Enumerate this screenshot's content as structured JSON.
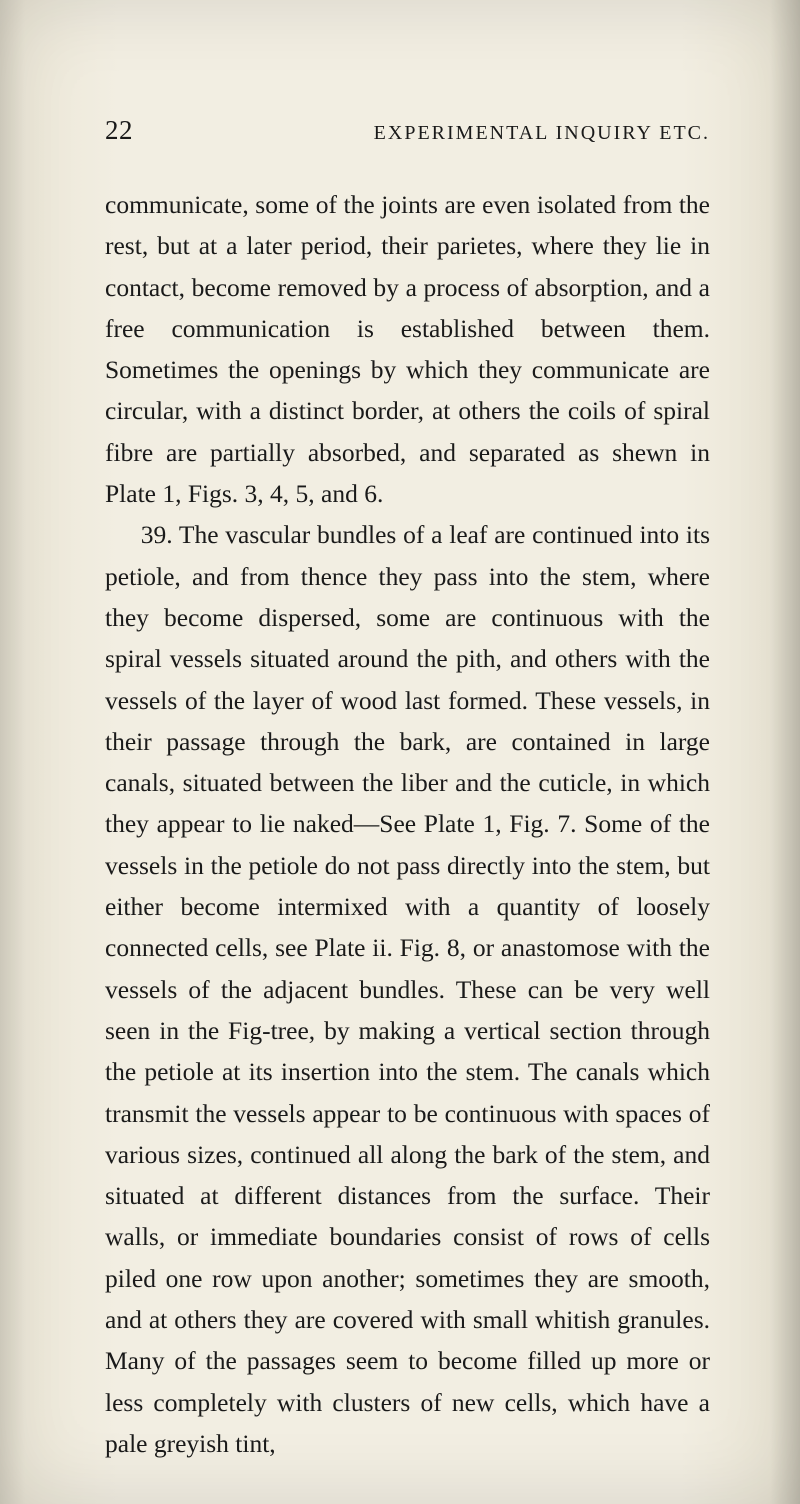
{
  "page": {
    "number": "22",
    "running_title": "EXPERIMENTAL INQUIRY ETC.",
    "paragraphs": [
      "communicate, some of the joints are even isolated from the rest, but at a later period, their parietes, where they lie in contact, become removed by a process of absorption, and a free communication is established between them. Sometimes the openings by which they communicate are circular, with a distinct border, at others the coils of spiral fibre are partially absorbed, and separated as shewn in Plate 1, Figs. 3, 4, 5, and 6.",
      "39. The vascular bundles of a leaf are continued into its petiole, and from thence they pass into the stem, where they become dispersed, some are continuous with the spiral vessels situated around the pith, and others with the vessels of the layer of wood last formed. These vessels, in their passage through the bark, are contained in large canals, situated between the liber and the cuticle, in which they appear to lie naked—See Plate 1, Fig. 7. Some of the vessels in the petiole do not pass directly into the stem, but either become intermixed with a quan­tity of loosely connected cells, see Plate ii. Fig. 8, or anastomose with the vessels of the adjacent bundles. These can be very well seen in the Fig-tree, by making a vertical section through the petiole at its insertion into the stem. The canals which transmit the vessels appear to be continuous with spaces of various sizes, continued all along the bark of the stem, and situated at different distances from the surface. Their walls, or immediate boundaries consist of rows of cells piled one row upon another; sometimes they are smooth, and at others they are covered with small whitish granules. Many of the passages seem to become filled up more or less completely with clusters of new cells, which have a pale greyish tint,"
    ]
  },
  "style": {
    "background_color": "#f2eee2",
    "text_color": "#1a1a1a",
    "body_font_size": 25.5,
    "header_font_size": 27,
    "line_height": 1.62
  }
}
